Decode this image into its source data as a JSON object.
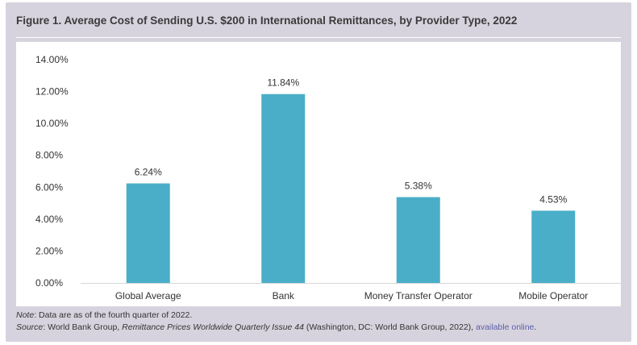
{
  "figure": {
    "title": "Figure 1. Average Cost of Sending U.S. $200 in International Remittances, by Provider Type, 2022",
    "note_label": "Note",
    "note_text": ": Data are as of the fourth quarter of 2022.",
    "source_label": "Source",
    "source_prefix": ": World Bank Group, ",
    "source_publication": "Remittance Prices Worldwide Quarterly Issue 44",
    "source_suffix": " (Washington, DC: World Bank Group, 2022), ",
    "source_link": "available online",
    "source_end": "."
  },
  "chart_data": {
    "type": "bar",
    "title": "Figure 1. Average Cost of Sending U.S. $200 in International Remittances, by Provider Type, 2022",
    "categories": [
      "Global Average",
      "Bank",
      "Money Transfer Operator",
      "Mobile Operator"
    ],
    "values": [
      6.24,
      11.84,
      5.38,
      4.53
    ],
    "data_labels": [
      "6.24%",
      "11.84%",
      "5.38%",
      "4.53%"
    ],
    "ylim": [
      0,
      14
    ],
    "yticks": [
      0,
      2,
      4,
      6,
      8,
      10,
      12,
      14
    ],
    "ytick_labels": [
      "0.00%",
      "2.00%",
      "4.00%",
      "6.00%",
      "8.00%",
      "10.00%",
      "12.00%",
      "14.00%"
    ],
    "xlabel": "",
    "ylabel": "",
    "grid": false,
    "bar_color": "#4aaec8"
  }
}
